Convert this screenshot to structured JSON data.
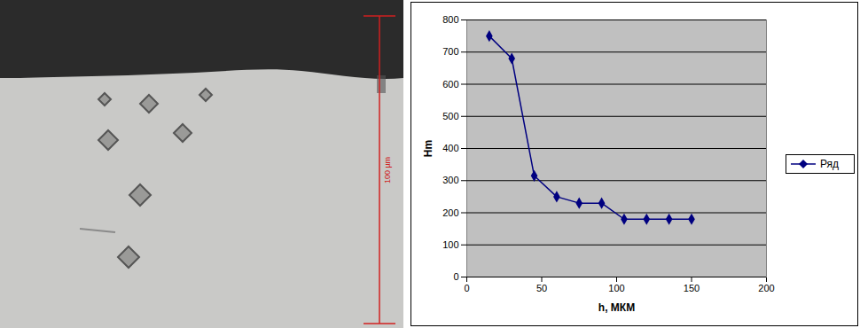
{
  "chart_data": {
    "type": "line",
    "x": [
      15,
      30,
      45,
      60,
      75,
      90,
      105,
      120,
      135,
      150
    ],
    "series": [
      {
        "name": "Ряд",
        "color": "#000080",
        "marker": "diamond",
        "line_style": "solid",
        "values": [
          750,
          680,
          315,
          250,
          230,
          230,
          180,
          180,
          180,
          180
        ]
      }
    ],
    "x_label": "h, МКМ",
    "y_label": "Hm",
    "xlim": [
      0,
      200
    ],
    "xticks": [
      0,
      50,
      100,
      150,
      200
    ],
    "ylim": [
      0,
      800
    ],
    "yticks": [
      0,
      100,
      200,
      300,
      400,
      500,
      600,
      700,
      800
    ],
    "grid": true,
    "legend": "right"
  },
  "micrograph": {
    "scale_label": "100 µm"
  }
}
